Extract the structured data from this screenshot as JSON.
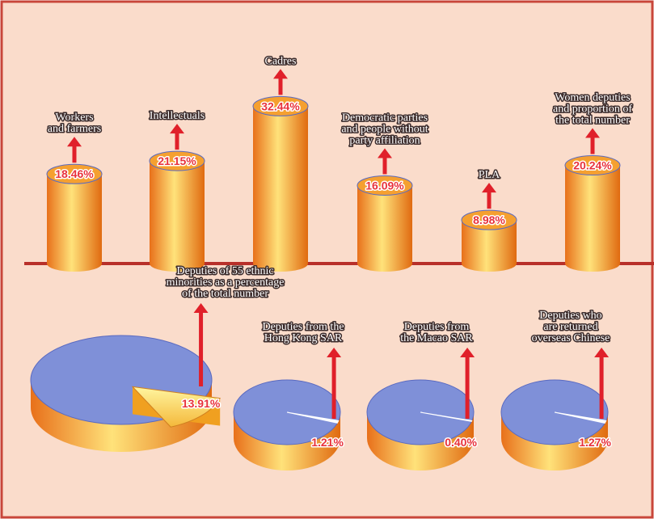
{
  "chart_data": [
    {
      "type": "bar",
      "categories": [
        "Workers\nand farmers",
        "Intellectuals",
        "Cadres",
        "Democratic parties\nand people without\nparty affiliation",
        "PLA",
        "Women deputies\nand proportion of\nthe total number"
      ],
      "values": [
        18.46,
        21.15,
        32.44,
        16.09,
        8.98,
        20.24
      ],
      "value_labels": [
        "18.46%",
        "21.15%",
        "32.44%",
        "16.09%",
        "8.98%",
        "20.24%"
      ],
      "color": "#f5a030"
    },
    {
      "type": "pie",
      "categories": [
        "Deputies of 55 ethnic\nminorities as a percentage\nof the total number",
        "Deputies from the\nHong Kong SAR",
        "Deputies from\nthe Macao SAR",
        "Deputies who\nare returned\noverseas Chinese"
      ],
      "values": [
        13.91,
        1.21,
        0.4,
        1.27
      ],
      "value_labels": [
        "13.91%",
        "1.21%",
        "0.40%",
        "1.27%"
      ],
      "color": "#7f90d8"
    }
  ]
}
